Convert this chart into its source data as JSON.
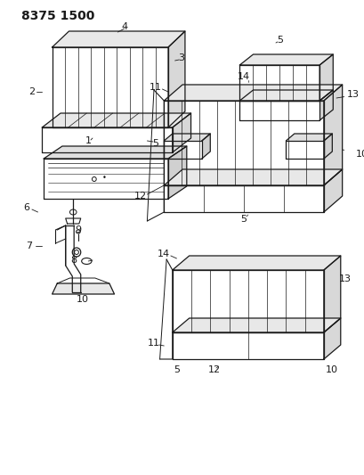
{
  "title": "8375 1500",
  "bg_color": "#ffffff",
  "line_color": "#1a1a1a",
  "title_fontsize": 10,
  "label_fontsize": 7.5,
  "fig_width": 4.1,
  "fig_height": 5.33,
  "dpi": 100
}
